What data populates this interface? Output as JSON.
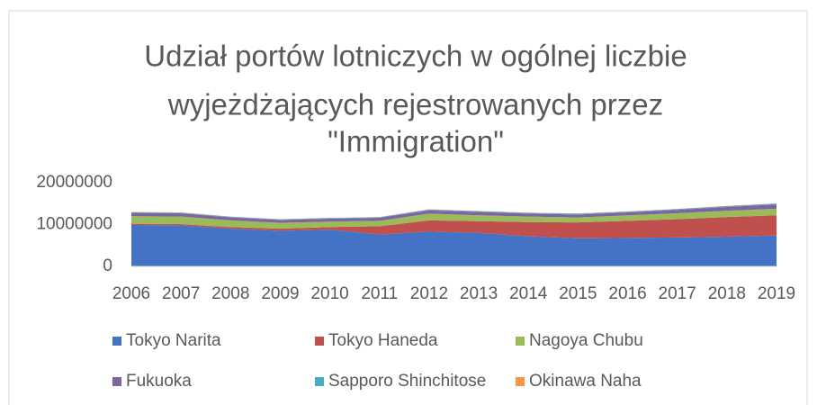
{
  "chart_data": {
    "type": "stacked_area",
    "title": [
      "Udział portów lotniczych w ogólnej liczbie",
      "wyjeżdżających rejestrowanych przez",
      "\"Immigration\""
    ],
    "categories": [
      "2006",
      "2007",
      "2008",
      "2009",
      "2010",
      "2011",
      "2012",
      "2013",
      "2014",
      "2015",
      "2016",
      "2017",
      "2018",
      "2019"
    ],
    "series": [
      {
        "name": "Tokyo Narita",
        "color": "#4472c4",
        "values": [
          9900000,
          9800000,
          9000000,
          8500000,
          8800000,
          7600000,
          8300000,
          8000000,
          7200000,
          6700000,
          6800000,
          6900000,
          7100000,
          7400000
        ]
      },
      {
        "name": "Tokyo Haneda",
        "color": "#c0504d",
        "values": [
          300000,
          300000,
          400000,
          500000,
          600000,
          2000000,
          2700000,
          2800000,
          3400000,
          3800000,
          4100000,
          4400000,
          4700000,
          4800000
        ]
      },
      {
        "name": "Nagoya Chubu",
        "color": "#9bbb59",
        "values": [
          1800000,
          1800000,
          1600000,
          1400000,
          1300000,
          1300000,
          1600000,
          1400000,
          1300000,
          1200000,
          1300000,
          1400000,
          1500000,
          1600000
        ]
      },
      {
        "name": "Fukuoka",
        "color": "#8064a2",
        "values": [
          800000,
          800000,
          700000,
          700000,
          700000,
          700000,
          800000,
          800000,
          700000,
          700000,
          700000,
          800000,
          900000,
          1000000
        ]
      },
      {
        "name": "Sapporo Shinchitose",
        "color": "#4bacc6",
        "values": [
          150000,
          150000,
          150000,
          150000,
          150000,
          150000,
          200000,
          200000,
          200000,
          200000,
          200000,
          200000,
          200000,
          200000
        ]
      },
      {
        "name": "Okinawa Naha",
        "color": "#f79646",
        "values": [
          50000,
          50000,
          50000,
          50000,
          50000,
          50000,
          50000,
          50000,
          50000,
          50000,
          50000,
          50000,
          50000,
          50000
        ]
      }
    ],
    "ylim": [
      0,
      20000000
    ],
    "yticks": [
      0,
      10000000,
      20000000
    ],
    "grid": false
  }
}
